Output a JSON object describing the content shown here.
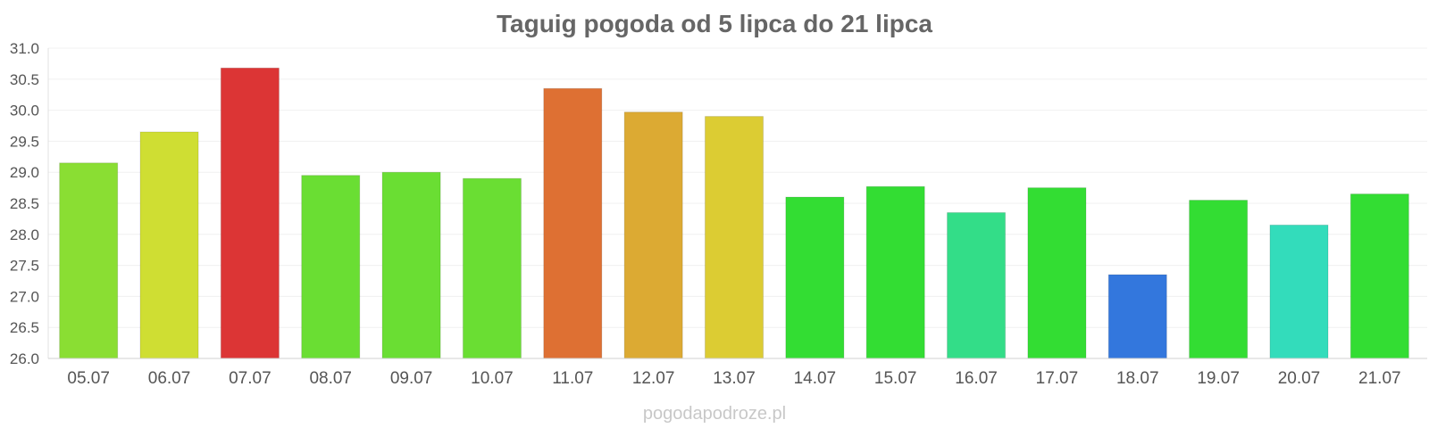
{
  "chart_data": {
    "type": "bar",
    "title": "Taguig pogoda od 5 lipca do 21 lipca",
    "categories": [
      "05.07",
      "06.07",
      "07.07",
      "08.07",
      "09.07",
      "10.07",
      "11.07",
      "12.07",
      "13.07",
      "14.07",
      "15.07",
      "16.07",
      "17.07",
      "18.07",
      "19.07",
      "20.07",
      "21.07"
    ],
    "values": [
      29.15,
      29.65,
      30.68,
      28.95,
      29.0,
      28.9,
      30.35,
      29.97,
      29.9,
      28.6,
      28.77,
      28.35,
      28.75,
      27.35,
      28.55,
      28.15,
      28.65
    ],
    "colors": [
      "#8ade33",
      "#cfde33",
      "#dc3535",
      "#6ade33",
      "#6ade33",
      "#6ade33",
      "#de7033",
      "#dcaa33",
      "#dccc33",
      "#33dd33",
      "#33dd33",
      "#33dd88",
      "#33dd33",
      "#3377dd",
      "#33dd33",
      "#33dcbb",
      "#33dd33"
    ],
    "ylim": [
      26.0,
      31.0
    ],
    "yticks": [
      "26.0",
      "26.5",
      "27.0",
      "27.5",
      "28.0",
      "28.5",
      "29.0",
      "29.5",
      "30.0",
      "30.5",
      "31.0"
    ],
    "xlabel": "",
    "ylabel": "",
    "grid": true,
    "credit": "pogodapodroze.pl"
  }
}
